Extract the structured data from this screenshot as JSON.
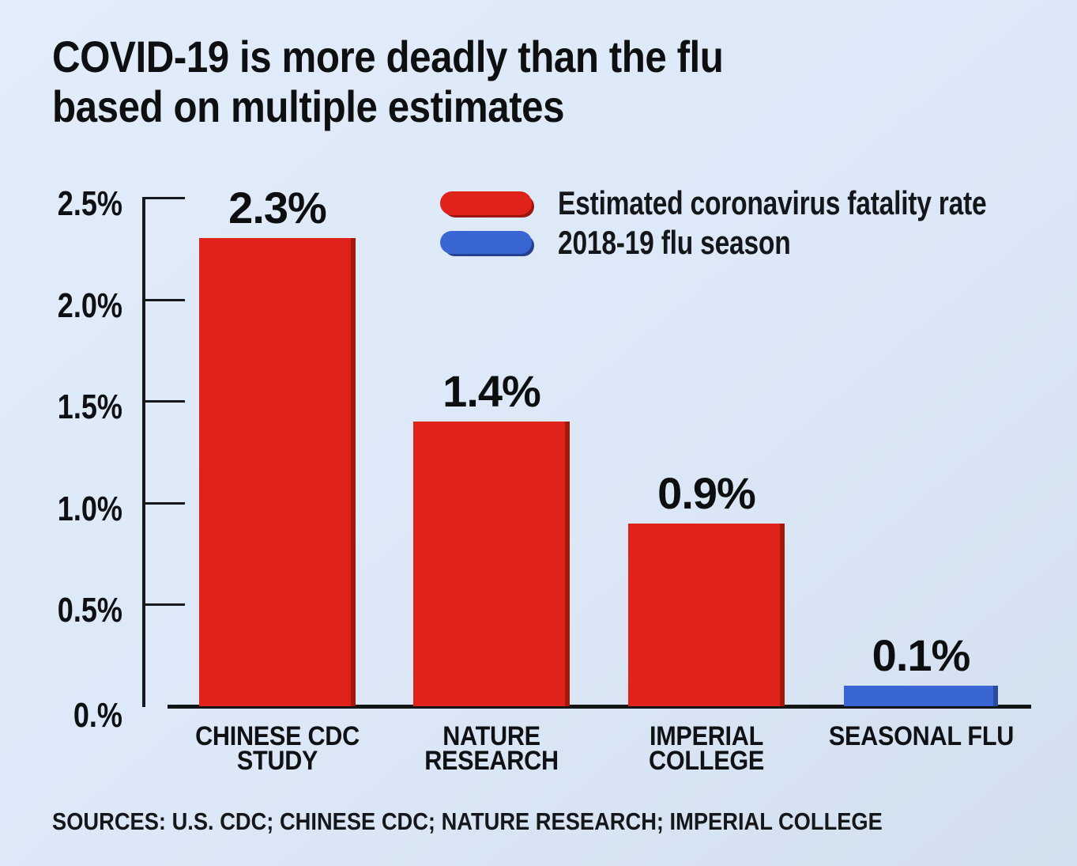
{
  "title": {
    "line1": "COVID-19 is more deadly than the flu",
    "line2": "based on multiple estimates"
  },
  "legend": {
    "items": [
      {
        "label": "Estimated coronavirus fatality rate",
        "color": "#e0231a",
        "shadow": "#9c150e"
      },
      {
        "label": "2018-19 flu season",
        "color": "#3a66d4",
        "shadow": "#24418f"
      }
    ]
  },
  "y_axis": {
    "tick_labels": [
      "2.5%",
      "2.0%",
      "1.5%",
      "1.0%",
      "0.5%",
      "0.%"
    ]
  },
  "bars": [
    {
      "category_line1": "CHINESE CDC",
      "category_line2": "STUDY",
      "value_label": "2.3%"
    },
    {
      "category_line1": "NATURE",
      "category_line2": "RESEARCH",
      "value_label": "1.4%"
    },
    {
      "category_line1": "IMPERIAL",
      "category_line2": "COLLEGE",
      "value_label": "0.9%"
    },
    {
      "category_line1": "SEASONAL FLU",
      "category_line2": "",
      "value_label": "0.1%"
    }
  ],
  "sources": "SOURCES: U.S. CDC; CHINESE CDC; NATURE RESEARCH; IMPERIAL COLLEGE",
  "chart_data": {
    "type": "bar",
    "title": "COVID-19 is more deadly than the flu based on multiple estimates",
    "categories": [
      "CHINESE CDC STUDY",
      "NATURE RESEARCH",
      "IMPERIAL COLLEGE",
      "SEASONAL FLU"
    ],
    "values": [
      2.3,
      1.4,
      0.9,
      0.1
    ],
    "value_labels": [
      "2.3%",
      "1.4%",
      "0.9%",
      "0.1%"
    ],
    "bar_colors": [
      "#e0231a",
      "#e0231a",
      "#e0231a",
      "#3a66d4"
    ],
    "bar_shadow_colors": [
      "#a5170d",
      "#a5170d",
      "#a5170d",
      "#2a4ba3"
    ],
    "xlabel": "",
    "ylabel": "",
    "ylim": [
      0,
      2.5
    ],
    "yticks": [
      0,
      0.5,
      1.0,
      1.5,
      2.0,
      2.5
    ],
    "ytick_labels": [
      "0.%",
      "0.5%",
      "1.0%",
      "1.5%",
      "2.0%",
      "2.5%"
    ],
    "grid": false,
    "legend": [
      {
        "label": "Estimated coronavirus fatality rate",
        "color": "#e0231a"
      },
      {
        "label": "2018-19 flu season",
        "color": "#3a66d4"
      }
    ],
    "legend_position": "top-right-inside",
    "background_color": "#dce8f7",
    "sources": "SOURCES: U.S. CDC; CHINESE CDC; NATURE RESEARCH; IMPERIAL COLLEGE"
  }
}
